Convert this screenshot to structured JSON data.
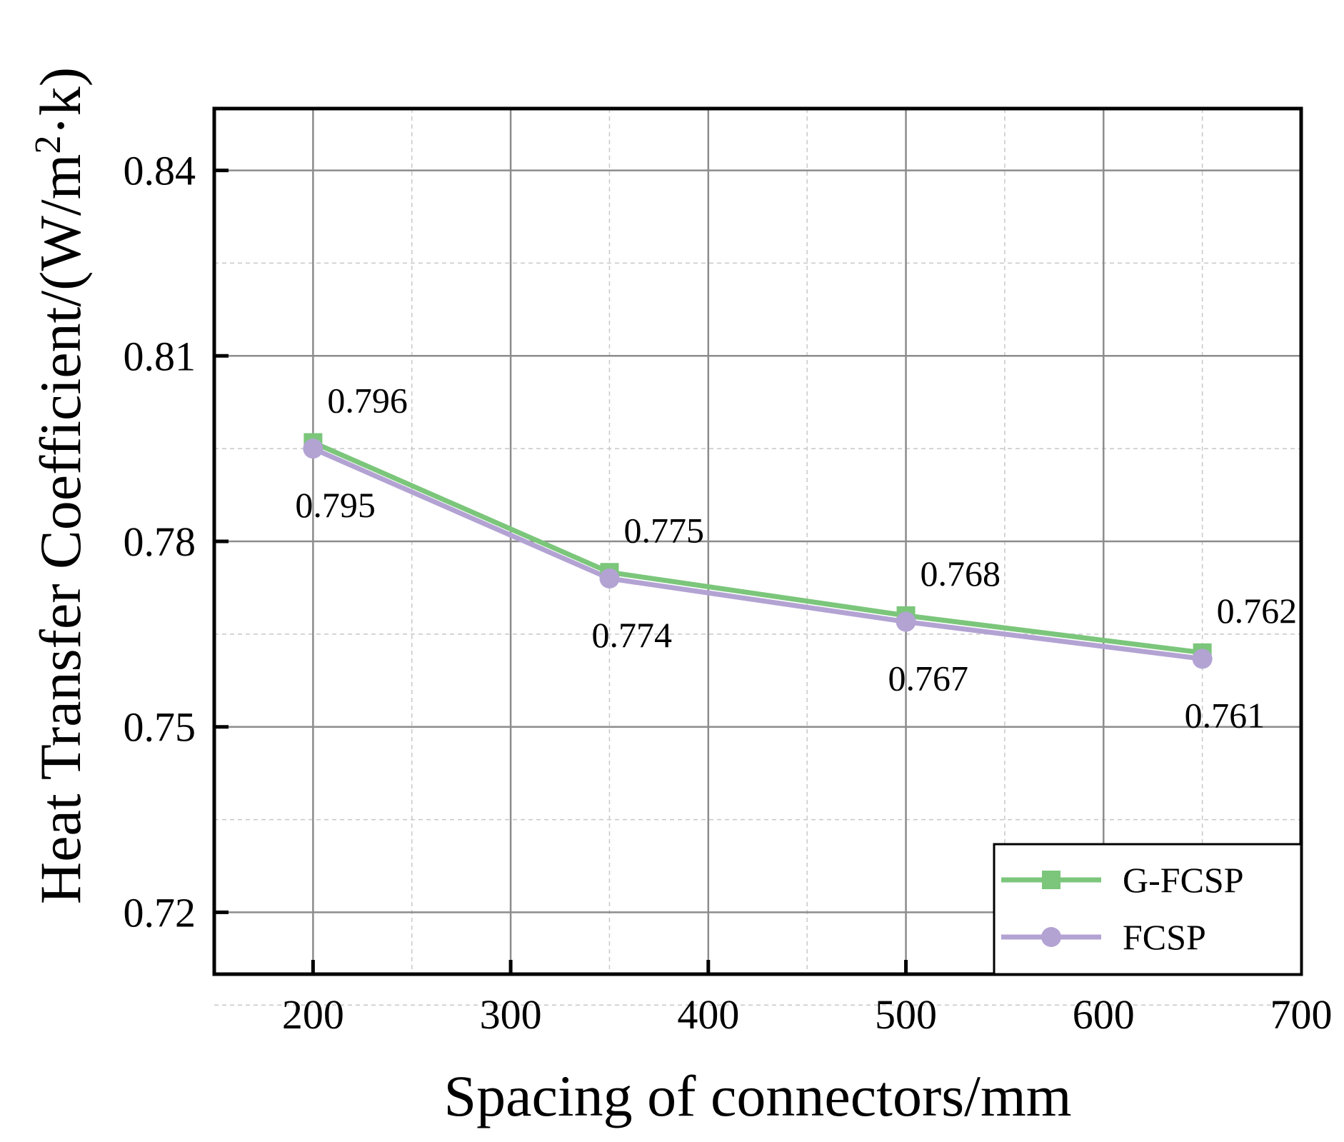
{
  "chart_data": {
    "type": "line",
    "title": "",
    "xlabel": "Spacing of connectors/mm",
    "ylabel_parts": [
      "Heat Transfer Coefficient/(W/m",
      "2",
      "·k)"
    ],
    "xlim": [
      150,
      700
    ],
    "ylim": [
      0.71,
      0.85
    ],
    "x_ticks": [
      200,
      300,
      400,
      500,
      600,
      700
    ],
    "x_tick_labels": [
      "200",
      "300",
      "400",
      "500",
      "600",
      "700"
    ],
    "y_ticks": [
      0.72,
      0.75,
      0.78,
      0.81,
      0.84
    ],
    "y_tick_labels": [
      "0.72",
      "0.75",
      "0.78",
      "0.81",
      "0.84"
    ],
    "x_minor_grid": [
      250,
      350,
      450,
      550,
      650
    ],
    "y_minor_grid": [
      0.705,
      0.735,
      0.765,
      0.795,
      0.825
    ],
    "grid": true,
    "legend_position": "bottom-right",
    "x": [
      200,
      350,
      500,
      650
    ],
    "series": [
      {
        "name": "G-FCSP",
        "marker": "square",
        "color": "#7bc67b",
        "values": [
          0.796,
          0.775,
          0.768,
          0.762
        ],
        "labels": [
          "0.796",
          "0.775",
          "0.768",
          "0.762"
        ]
      },
      {
        "name": "FCSP",
        "marker": "circle",
        "color": "#b3a3d3",
        "values": [
          0.795,
          0.774,
          0.767,
          0.761
        ],
        "labels": [
          "0.795",
          "0.774",
          "0.767",
          "0.761"
        ]
      }
    ]
  }
}
